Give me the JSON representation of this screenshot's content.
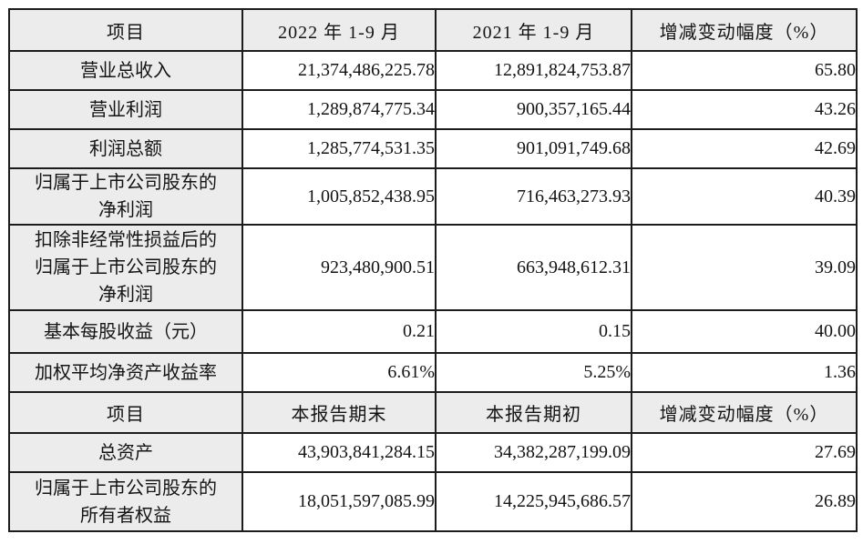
{
  "table": {
    "colors": {
      "header_bg": "#ececec",
      "label_column_bg": "#ececec",
      "data_cell_bg": "#ffffff",
      "border": "#1c1c1c",
      "text": "#141414"
    },
    "sections": [
      {
        "headers": [
          "项目",
          "2022 年 1-9 月",
          "2021 年 1-9 月",
          "增减变动幅度（%）"
        ],
        "rows": [
          {
            "label": "营业总收入",
            "current": "21,374,486,225.78",
            "prior": "12,891,824,753.87",
            "change": "65.80"
          },
          {
            "label": "营业利润",
            "current": "1,289,874,775.34",
            "prior": "900,357,165.44",
            "change": "43.26"
          },
          {
            "label": "利润总额",
            "current": "1,285,774,531.35",
            "prior": "901,091,749.68",
            "change": "42.69"
          },
          {
            "label": "归属于上市公司股东的\n净利润",
            "current": "1,005,852,438.95",
            "prior": "716,463,273.93",
            "change": "40.39"
          },
          {
            "label": "扣除非经常性损益后的\n归属于上市公司股东的\n净利润",
            "current": "923,480,900.51",
            "prior": "663,948,612.31",
            "change": "39.09"
          },
          {
            "label": "基本每股收益（元）",
            "current": "0.21",
            "prior": "0.15",
            "change": "40.00"
          },
          {
            "label": "加权平均净资产收益率",
            "current": "6.61%",
            "prior": "5.25%",
            "change": "1.36"
          }
        ]
      },
      {
        "headers": [
          "项目",
          "本报告期末",
          "本报告期初",
          "增减变动幅度（%）"
        ],
        "rows": [
          {
            "label": "总资产",
            "current": "43,903,841,284.15",
            "prior": "34,382,287,199.09",
            "change": "27.69"
          },
          {
            "label": "归属于上市公司股东的\n所有者权益",
            "current": "18,051,597,085.99",
            "prior": "14,225,945,686.57",
            "change": "26.89"
          }
        ]
      }
    ]
  }
}
